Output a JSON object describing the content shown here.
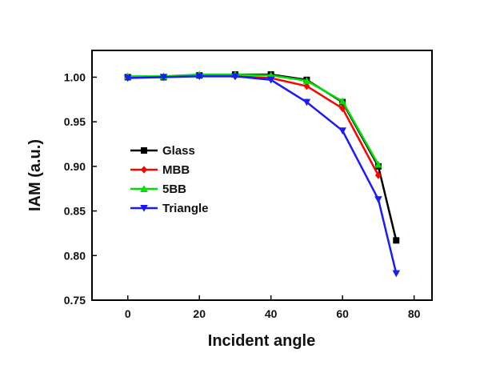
{
  "chart_data": {
    "type": "line",
    "xlabel": "Incident angle",
    "ylabel": "IAM (a.u.)",
    "xlim": [
      -10,
      85
    ],
    "ylim": [
      0.75,
      1.03
    ],
    "x_ticks": [
      0,
      20,
      40,
      60,
      80
    ],
    "y_ticks": [
      0.75,
      0.8,
      0.85,
      0.9,
      0.95,
      1.0
    ],
    "x_tick_labels": [
      "0",
      "20",
      "40",
      "60",
      "80"
    ],
    "y_tick_labels": [
      "0.75",
      "0.80",
      "0.85",
      "0.90",
      "0.95",
      "1.00"
    ],
    "grid": false,
    "legend_position": "center-left",
    "series": [
      {
        "name": "Glass",
        "color": "#000000",
        "marker": "square",
        "x": [
          0,
          10,
          20,
          30,
          40,
          50,
          60,
          70,
          75
        ],
        "y": [
          1.0,
          1.0,
          1.002,
          1.003,
          1.003,
          0.997,
          0.972,
          0.9,
          0.817
        ]
      },
      {
        "name": "MBB",
        "color": "#ff0000",
        "marker": "diamond",
        "x": [
          0,
          10,
          20,
          30,
          40,
          50,
          60,
          70
        ],
        "y": [
          1.0,
          1.0,
          1.002,
          1.001,
          0.999,
          0.99,
          0.965,
          0.89
        ]
      },
      {
        "name": "5BB",
        "color": "#00dd00",
        "marker": "triangle-up",
        "x": [
          0,
          10,
          20,
          30,
          40,
          50,
          60,
          70
        ],
        "y": [
          1.001,
          1.001,
          1.003,
          1.003,
          1.002,
          0.996,
          0.973,
          0.902
        ]
      },
      {
        "name": "Triangle",
        "color": "#1a1aff",
        "marker": "triangle-down",
        "x": [
          0,
          10,
          20,
          30,
          40,
          50,
          60,
          70,
          75
        ],
        "y": [
          0.999,
          1.0,
          1.001,
          1.001,
          0.997,
          0.972,
          0.94,
          0.863,
          0.78
        ]
      }
    ]
  }
}
